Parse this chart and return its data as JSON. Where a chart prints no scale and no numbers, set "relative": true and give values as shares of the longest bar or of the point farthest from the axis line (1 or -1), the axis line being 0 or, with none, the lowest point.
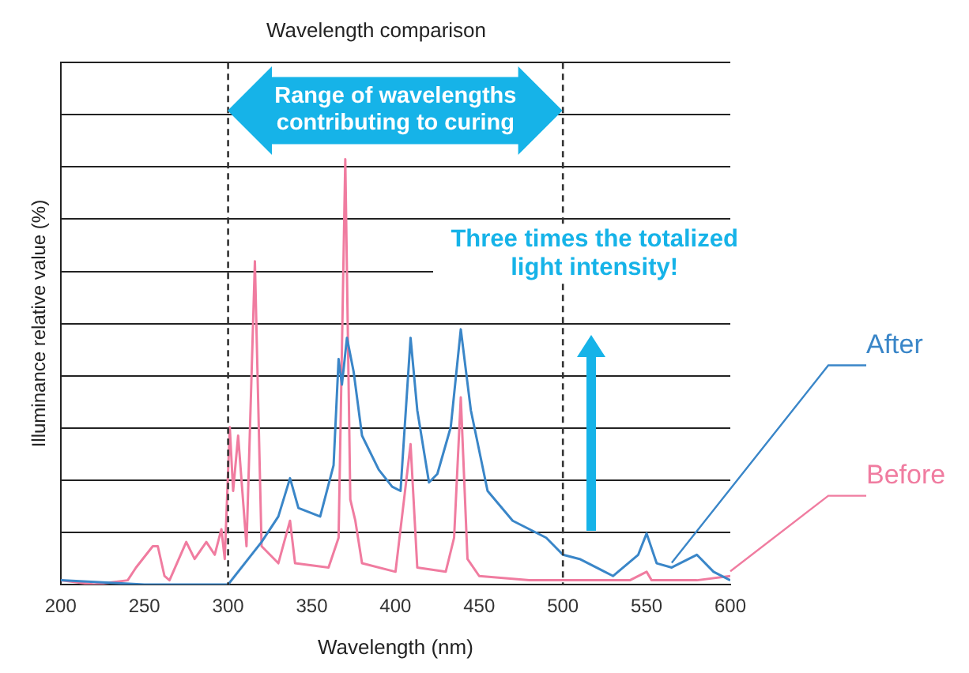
{
  "chart_data": {
    "type": "line",
    "title": "Wavelength comparison",
    "xlabel": "Wavelength (nm)",
    "ylabel": "Illuminance relative value (%)",
    "relative": true,
    "xlim": [
      200,
      600
    ],
    "xticks": [
      200,
      250,
      300,
      350,
      400,
      450,
      500,
      550,
      600
    ],
    "grid": "y",
    "legend": false,
    "marker": "none",
    "annotations": [
      "Range of wavelengths contributing to curing",
      "Three times the totalized light intensity!"
    ],
    "ref_lines": [
      {
        "axis": "x",
        "value": 300,
        "color": "#333333",
        "line_style": "dashed"
      },
      {
        "axis": "x",
        "value": 500,
        "color": "#333333",
        "line_style": "dashed"
      }
    ],
    "series": [
      {
        "name": "After",
        "color": "#3a86c8",
        "x": [
          200,
          250,
          300,
          320,
          330,
          337,
          342,
          355,
          363,
          366,
          368,
          371,
          375,
          380,
          390,
          398,
          403,
          409,
          413,
          420,
          425,
          433,
          439,
          445,
          455,
          470,
          480,
          490,
          500,
          510,
          530,
          545,
          550,
          556,
          565,
          580,
          590,
          600
        ],
        "values": [
          0.01,
          0,
          0,
          0.1,
          0.16,
          0.25,
          0.18,
          0.16,
          0.28,
          0.53,
          0.47,
          0.58,
          0.5,
          0.35,
          0.27,
          0.23,
          0.22,
          0.58,
          0.41,
          0.24,
          0.26,
          0.37,
          0.6,
          0.41,
          0.22,
          0.15,
          0.13,
          0.11,
          0.07,
          0.06,
          0.02,
          0.07,
          0.12,
          0.05,
          0.04,
          0.07,
          0.03,
          0.01
        ]
      },
      {
        "name": "Before",
        "color": "#f07ca0",
        "x": [
          200,
          220,
          240,
          245,
          255,
          258,
          262,
          265,
          275,
          280,
          287,
          292,
          296,
          298,
          301,
          303,
          306,
          311,
          316,
          320,
          330,
          337,
          340,
          360,
          366,
          370,
          373,
          376,
          380,
          400,
          409,
          413,
          430,
          435,
          439,
          443,
          450,
          480,
          500,
          540,
          550,
          553,
          580,
          600
        ],
        "values": [
          0.01,
          0,
          0.01,
          0.04,
          0.09,
          0.09,
          0.02,
          0.01,
          0.1,
          0.06,
          0.1,
          0.07,
          0.13,
          0.06,
          0.37,
          0.22,
          0.35,
          0.09,
          0.76,
          0.09,
          0.05,
          0.15,
          0.05,
          0.04,
          0.11,
          1,
          0.2,
          0.15,
          0.05,
          0.03,
          0.33,
          0.04,
          0.03,
          0.11,
          0.44,
          0.06,
          0.02,
          0.01,
          0.01,
          0.01,
          0.03,
          0.01,
          0.01,
          0.02
        ]
      }
    ]
  }
}
